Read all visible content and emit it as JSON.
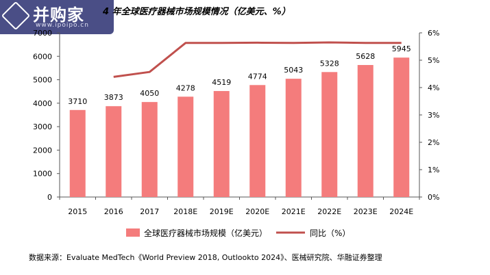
{
  "logo": {
    "name": "并购家",
    "url": "www.ipoipo.cn"
  },
  "chart_data": {
    "type": "bar",
    "title": "2015-2024 年全球医疗器械市场规模情况（亿美元、%）",
    "title_visible": "4 年全球医疗器械市场规模情况（亿美元、%）",
    "categories": [
      "2015",
      "2016",
      "2017",
      "2018E",
      "2019E",
      "2020E",
      "2021E",
      "2022E",
      "2023E",
      "2024E"
    ],
    "series": [
      {
        "name": "全球医疗器械市场规模（亿美元）",
        "kind": "bar",
        "axis": "left",
        "color": "#f47c7c",
        "values": [
          3710,
          3873,
          4050,
          4278,
          4519,
          4774,
          5043,
          5328,
          5628,
          5945
        ]
      },
      {
        "name": "同比（%）",
        "kind": "line",
        "axis": "right",
        "color": "#c0504d",
        "values": [
          null,
          4.39,
          4.57,
          5.63,
          5.63,
          5.64,
          5.63,
          5.65,
          5.63,
          5.63
        ]
      }
    ],
    "y_left": {
      "range": [
        0,
        7000
      ],
      "ticks": [
        "0",
        "1000",
        "2000",
        "3000",
        "4000",
        "5000",
        "6000",
        "7000"
      ]
    },
    "y_right": {
      "range": [
        0,
        6
      ],
      "ticks": [
        "0%",
        "1%",
        "2%",
        "3%",
        "4%",
        "5%",
        "6%"
      ]
    },
    "grid": false,
    "legend_position": "bottom"
  },
  "source": "数据来源：Evaluate MedTech《World Preview 2018, Outlookto 2024》、医械研究院、华融证券整理"
}
